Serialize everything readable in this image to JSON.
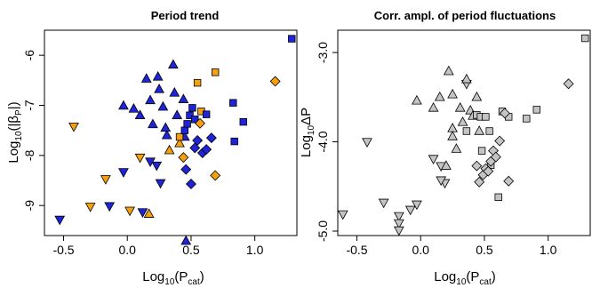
{
  "colors": {
    "blue": "#1f24d6",
    "orange": "#f5a00f",
    "gray": "#c4c4c4",
    "outline": "#000000"
  },
  "chart_data": [
    {
      "type": "scatter",
      "title": "Period trend",
      "xlabel": {
        "main": "Log",
        "sub1": "10",
        "mid": "(P",
        "sub2": "cat",
        "end": ")"
      },
      "ylabel": {
        "main": "Log",
        "sub1": "10",
        "mid": "(|β",
        "sub2": "P",
        "end": "|)"
      },
      "xlim": [
        -0.65,
        1.33
      ],
      "ylim": [
        -9.6,
        -5.5
      ],
      "xticks": [
        {
          "value": -0.5,
          "label": "-0.5"
        },
        {
          "value": 0.0,
          "label": "0.0"
        },
        {
          "value": 0.5,
          "label": "0.5"
        },
        {
          "value": 1.0,
          "label": "1.0"
        }
      ],
      "yticks": [
        {
          "value": -6,
          "label": "-6"
        },
        {
          "value": -7,
          "label": "-7"
        },
        {
          "value": -8,
          "label": "-8"
        },
        {
          "value": -9,
          "label": "-9"
        }
      ],
      "grid": false,
      "points": [
        {
          "x": -0.53,
          "y": -9.28,
          "shape": "tri-down",
          "color": "blue"
        },
        {
          "x": -0.29,
          "y": -9.02,
          "shape": "tri-down",
          "color": "orange"
        },
        {
          "x": -0.14,
          "y": -9.01,
          "shape": "tri-down",
          "color": "blue"
        },
        {
          "x": -0.17,
          "y": -8.47,
          "shape": "tri-down",
          "color": "orange"
        },
        {
          "x": -0.03,
          "y": -8.33,
          "shape": "tri-down",
          "color": "blue"
        },
        {
          "x": 0.02,
          "y": -9.1,
          "shape": "tri-down",
          "color": "orange"
        },
        {
          "x": 0.12,
          "y": -9.13,
          "shape": "tri-down",
          "color": "blue"
        },
        {
          "x": 0.17,
          "y": -9.17,
          "shape": "tri-up",
          "color": "orange"
        },
        {
          "x": 0.1,
          "y": -8.04,
          "shape": "tri-down",
          "color": "orange"
        },
        {
          "x": 0.18,
          "y": -8.12,
          "shape": "tri-down",
          "color": "blue"
        },
        {
          "x": 0.23,
          "y": -8.2,
          "shape": "tri-down",
          "color": "blue"
        },
        {
          "x": 0.26,
          "y": -8.55,
          "shape": "tri-down",
          "color": "blue"
        },
        {
          "x": -0.42,
          "y": -7.42,
          "shape": "tri-down",
          "color": "orange"
        },
        {
          "x": -0.03,
          "y": -7.01,
          "shape": "tri-up",
          "color": "blue"
        },
        {
          "x": 0.05,
          "y": -7.07,
          "shape": "tri-up",
          "color": "blue"
        },
        {
          "x": 0.1,
          "y": -7.2,
          "shape": "tri-up",
          "color": "blue"
        },
        {
          "x": 0.15,
          "y": -6.47,
          "shape": "tri-up",
          "color": "blue"
        },
        {
          "x": 0.18,
          "y": -6.9,
          "shape": "tri-up",
          "color": "blue"
        },
        {
          "x": 0.2,
          "y": -7.38,
          "shape": "tri-up",
          "color": "blue"
        },
        {
          "x": 0.24,
          "y": -6.43,
          "shape": "tri-up",
          "color": "blue"
        },
        {
          "x": 0.25,
          "y": -6.68,
          "shape": "tri-up",
          "color": "blue"
        },
        {
          "x": 0.28,
          "y": -7.03,
          "shape": "tri-up",
          "color": "blue"
        },
        {
          "x": 0.31,
          "y": -7.6,
          "shape": "tri-up",
          "color": "blue"
        },
        {
          "x": 0.33,
          "y": -7.9,
          "shape": "tri-up",
          "color": "orange"
        },
        {
          "x": 0.3,
          "y": -7.45,
          "shape": "tri-up",
          "color": "blue"
        },
        {
          "x": 0.36,
          "y": -6.19,
          "shape": "tri-up",
          "color": "blue"
        },
        {
          "x": 0.37,
          "y": -6.75,
          "shape": "tri-up",
          "color": "blue"
        },
        {
          "x": 0.39,
          "y": -7.2,
          "shape": "tri-up",
          "color": "blue"
        },
        {
          "x": 0.41,
          "y": -7.76,
          "shape": "tri-up",
          "color": "orange"
        },
        {
          "x": 0.44,
          "y": -6.88,
          "shape": "tri-up",
          "color": "blue"
        },
        {
          "x": 0.45,
          "y": -7.63,
          "shape": "tri-up",
          "color": "blue"
        },
        {
          "x": 0.46,
          "y": -9.71,
          "shape": "tri-up",
          "color": "blue"
        },
        {
          "x": 0.41,
          "y": -7.63,
          "shape": "square",
          "color": "orange"
        },
        {
          "x": 0.45,
          "y": -7.5,
          "shape": "square",
          "color": "blue"
        },
        {
          "x": 0.47,
          "y": -7.37,
          "shape": "square",
          "color": "blue"
        },
        {
          "x": 0.49,
          "y": -7.2,
          "shape": "square",
          "color": "blue"
        },
        {
          "x": 0.51,
          "y": -7.05,
          "shape": "square",
          "color": "blue"
        },
        {
          "x": 0.53,
          "y": -7.28,
          "shape": "square",
          "color": "blue"
        },
        {
          "x": 0.55,
          "y": -6.55,
          "shape": "square",
          "color": "orange"
        },
        {
          "x": 0.58,
          "y": -7.12,
          "shape": "square",
          "color": "orange"
        },
        {
          "x": 0.62,
          "y": -7.18,
          "shape": "square",
          "color": "blue"
        },
        {
          "x": 0.69,
          "y": -6.34,
          "shape": "square",
          "color": "orange"
        },
        {
          "x": 0.83,
          "y": -6.95,
          "shape": "square",
          "color": "blue"
        },
        {
          "x": 0.84,
          "y": -7.72,
          "shape": "square",
          "color": "blue"
        },
        {
          "x": 0.91,
          "y": -7.33,
          "shape": "square",
          "color": "blue"
        },
        {
          "x": 1.29,
          "y": -5.67,
          "shape": "square",
          "color": "blue"
        },
        {
          "x": 0.44,
          "y": -8.04,
          "shape": "diamond",
          "color": "orange"
        },
        {
          "x": 0.46,
          "y": -8.28,
          "shape": "diamond",
          "color": "blue"
        },
        {
          "x": 0.5,
          "y": -8.57,
          "shape": "diamond",
          "color": "blue"
        },
        {
          "x": 0.53,
          "y": -7.85,
          "shape": "diamond",
          "color": "blue"
        },
        {
          "x": 0.55,
          "y": -7.7,
          "shape": "diamond",
          "color": "blue"
        },
        {
          "x": 0.57,
          "y": -7.36,
          "shape": "diamond",
          "color": "orange"
        },
        {
          "x": 0.59,
          "y": -7.95,
          "shape": "diamond",
          "color": "blue"
        },
        {
          "x": 0.62,
          "y": -7.88,
          "shape": "diamond",
          "color": "blue"
        },
        {
          "x": 0.66,
          "y": -7.65,
          "shape": "diamond",
          "color": "blue"
        },
        {
          "x": 0.69,
          "y": -8.4,
          "shape": "diamond",
          "color": "orange"
        },
        {
          "x": 1.16,
          "y": -6.52,
          "shape": "diamond",
          "color": "orange"
        }
      ]
    },
    {
      "type": "scatter",
      "title": "Corr. ampl. of period fluctuations",
      "xlabel": {
        "main": "Log",
        "sub1": "10",
        "mid": "(P",
        "sub2": "cat",
        "end": ")"
      },
      "ylabel": {
        "main": "Log",
        "sub1": "10",
        "mid": "ΔP",
        "sub2": "",
        "end": ""
      },
      "xlim": [
        -0.65,
        1.33
      ],
      "ylim": [
        -5.05,
        -2.75
      ],
      "xticks": [
        {
          "value": -0.5,
          "label": "-0.5"
        },
        {
          "value": 0.0,
          "label": "0.0"
        },
        {
          "value": 0.5,
          "label": "0.5"
        },
        {
          "value": 1.0,
          "label": "1.0"
        }
      ],
      "yticks": [
        {
          "value": -3.0,
          "label": "-3.0"
        },
        {
          "value": -4.0,
          "label": "-4.0"
        },
        {
          "value": -5.0,
          "label": "-5.0"
        }
      ],
      "grid": false,
      "points": [
        {
          "x": -0.61,
          "y": -4.81,
          "shape": "tri-down",
          "color": "gray"
        },
        {
          "x": -0.42,
          "y": -4.0,
          "shape": "tri-down",
          "color": "gray"
        },
        {
          "x": -0.29,
          "y": -4.68,
          "shape": "tri-down",
          "color": "gray"
        },
        {
          "x": -0.17,
          "y": -4.83,
          "shape": "tri-down",
          "color": "gray"
        },
        {
          "x": -0.17,
          "y": -4.91,
          "shape": "tri-down",
          "color": "gray"
        },
        {
          "x": -0.17,
          "y": -4.99,
          "shape": "tri-down",
          "color": "gray"
        },
        {
          "x": -0.08,
          "y": -4.76,
          "shape": "tri-down",
          "color": "gray"
        },
        {
          "x": -0.03,
          "y": -4.7,
          "shape": "tri-down",
          "color": "gray"
        },
        {
          "x": 0.1,
          "y": -4.19,
          "shape": "tri-down",
          "color": "gray"
        },
        {
          "x": 0.16,
          "y": -4.27,
          "shape": "tri-down",
          "color": "gray"
        },
        {
          "x": 0.19,
          "y": -4.46,
          "shape": "tri-down",
          "color": "gray"
        },
        {
          "x": 0.16,
          "y": -4.43,
          "shape": "tri-down",
          "color": "gray"
        },
        {
          "x": 0.36,
          "y": -3.35,
          "shape": "tri-down",
          "color": "gray"
        },
        {
          "x": -0.03,
          "y": -3.54,
          "shape": "tri-up",
          "color": "gray"
        },
        {
          "x": 0.1,
          "y": -3.62,
          "shape": "tri-up",
          "color": "gray"
        },
        {
          "x": 0.15,
          "y": -3.5,
          "shape": "tri-up",
          "color": "gray"
        },
        {
          "x": 0.2,
          "y": -4.27,
          "shape": "tri-up",
          "color": "gray"
        },
        {
          "x": 0.22,
          "y": -3.21,
          "shape": "tri-up",
          "color": "gray"
        },
        {
          "x": 0.25,
          "y": -3.47,
          "shape": "tri-up",
          "color": "gray"
        },
        {
          "x": 0.25,
          "y": -3.85,
          "shape": "tri-up",
          "color": "gray"
        },
        {
          "x": 0.25,
          "y": -3.94,
          "shape": "tri-up",
          "color": "gray"
        },
        {
          "x": 0.28,
          "y": -4.08,
          "shape": "tri-up",
          "color": "gray"
        },
        {
          "x": 0.31,
          "y": -3.62,
          "shape": "tri-up",
          "color": "gray"
        },
        {
          "x": 0.33,
          "y": -3.78,
          "shape": "tri-up",
          "color": "gray"
        },
        {
          "x": 0.36,
          "y": -3.3,
          "shape": "tri-up",
          "color": "gray"
        },
        {
          "x": 0.39,
          "y": -3.65,
          "shape": "tri-up",
          "color": "gray"
        },
        {
          "x": 0.41,
          "y": -3.71,
          "shape": "tri-up",
          "color": "gray"
        },
        {
          "x": 0.44,
          "y": -3.5,
          "shape": "tri-up",
          "color": "gray"
        },
        {
          "x": 0.46,
          "y": -3.88,
          "shape": "tri-up",
          "color": "gray"
        },
        {
          "x": 0.36,
          "y": -3.88,
          "shape": "square",
          "color": "gray"
        },
        {
          "x": 0.44,
          "y": -3.7,
          "shape": "square",
          "color": "gray"
        },
        {
          "x": 0.47,
          "y": -3.72,
          "shape": "square",
          "color": "gray"
        },
        {
          "x": 0.48,
          "y": -4.1,
          "shape": "square",
          "color": "gray"
        },
        {
          "x": 0.51,
          "y": -3.72,
          "shape": "square",
          "color": "gray"
        },
        {
          "x": 0.54,
          "y": -3.88,
          "shape": "square",
          "color": "gray"
        },
        {
          "x": 0.55,
          "y": -4.26,
          "shape": "square",
          "color": "gray"
        },
        {
          "x": 0.64,
          "y": -3.66,
          "shape": "square",
          "color": "gray"
        },
        {
          "x": 0.69,
          "y": -3.72,
          "shape": "square",
          "color": "gray"
        },
        {
          "x": 0.83,
          "y": -3.74,
          "shape": "square",
          "color": "gray"
        },
        {
          "x": 0.91,
          "y": -3.64,
          "shape": "square",
          "color": "gray"
        },
        {
          "x": 0.61,
          "y": -4.62,
          "shape": "square",
          "color": "gray"
        },
        {
          "x": 1.29,
          "y": -2.84,
          "shape": "square",
          "color": "gray"
        },
        {
          "x": 0.44,
          "y": -4.27,
          "shape": "diamond",
          "color": "gray"
        },
        {
          "x": 0.46,
          "y": -4.45,
          "shape": "diamond",
          "color": "gray"
        },
        {
          "x": 0.49,
          "y": -4.37,
          "shape": "diamond",
          "color": "gray"
        },
        {
          "x": 0.51,
          "y": -4.3,
          "shape": "diamond",
          "color": "gray"
        },
        {
          "x": 0.53,
          "y": -4.33,
          "shape": "diamond",
          "color": "gray"
        },
        {
          "x": 0.55,
          "y": -4.22,
          "shape": "diamond",
          "color": "gray"
        },
        {
          "x": 0.57,
          "y": -4.1,
          "shape": "diamond",
          "color": "gray"
        },
        {
          "x": 0.59,
          "y": -4.17,
          "shape": "diamond",
          "color": "gray"
        },
        {
          "x": 0.62,
          "y": -3.99,
          "shape": "diamond",
          "color": "gray"
        },
        {
          "x": 0.66,
          "y": -3.68,
          "shape": "diamond",
          "color": "gray"
        },
        {
          "x": 0.69,
          "y": -4.44,
          "shape": "diamond",
          "color": "gray"
        },
        {
          "x": 1.16,
          "y": -3.35,
          "shape": "diamond",
          "color": "gray"
        }
      ]
    }
  ]
}
